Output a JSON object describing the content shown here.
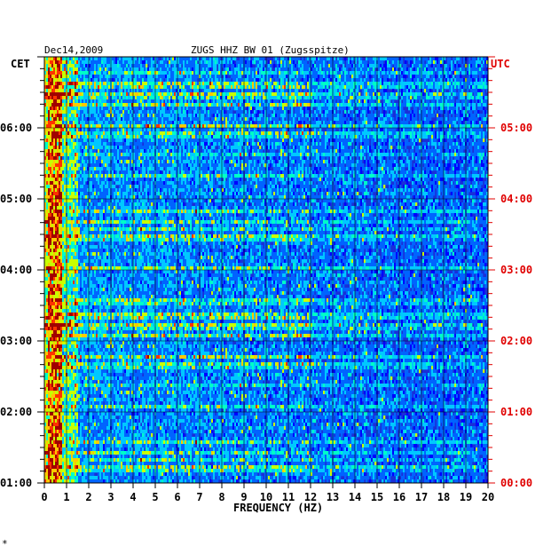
{
  "header": {
    "date": "Dec14,2009",
    "station": "ZUGS HHZ BW 01 (Zugsspitze)"
  },
  "corner_mark": "*",
  "chart_data": {
    "type": "heatmap",
    "title": "ZUGS HHZ BW 01 (Zugsspitze)",
    "date": "Dec14,2009",
    "xlabel": "FREQUENCY (HZ)",
    "xlim": [
      0,
      20
    ],
    "x_ticks": [
      "0",
      "1",
      "2",
      "3",
      "4",
      "5",
      "6",
      "7",
      "8",
      "9",
      "10",
      "11",
      "12",
      "13",
      "14",
      "15",
      "16",
      "17",
      "18",
      "19",
      "20"
    ],
    "left_axis": {
      "label": "CET",
      "range_hours": [
        1,
        7
      ],
      "ticks": [
        {
          "hour": 6,
          "label": "06:00"
        },
        {
          "hour": 5,
          "label": "05:00"
        },
        {
          "hour": 4,
          "label": "04:00"
        },
        {
          "hour": 3,
          "label": "03:00"
        },
        {
          "hour": 2,
          "label": "02:00"
        },
        {
          "hour": 1,
          "label": "01:00"
        }
      ]
    },
    "right_axis": {
      "label": "UTC",
      "ticks": [
        {
          "hour": 6,
          "label": "05:00"
        },
        {
          "hour": 5,
          "label": "04:00"
        },
        {
          "hour": 4,
          "label": "03:00"
        },
        {
          "hour": 3,
          "label": "02:00"
        },
        {
          "hour": 2,
          "label": "01:00"
        },
        {
          "hour": 1,
          "label": "00:00"
        }
      ]
    },
    "grid": true,
    "colormap": [
      "#00008c",
      "#0000ff",
      "#0064ff",
      "#00c8ff",
      "#00ffc8",
      "#c8ff00",
      "#ffc800",
      "#ff3200",
      "#a00000"
    ],
    "dominant_band_hz": [
      0.2,
      0.8
    ],
    "background_color": "#1a2fd8"
  }
}
